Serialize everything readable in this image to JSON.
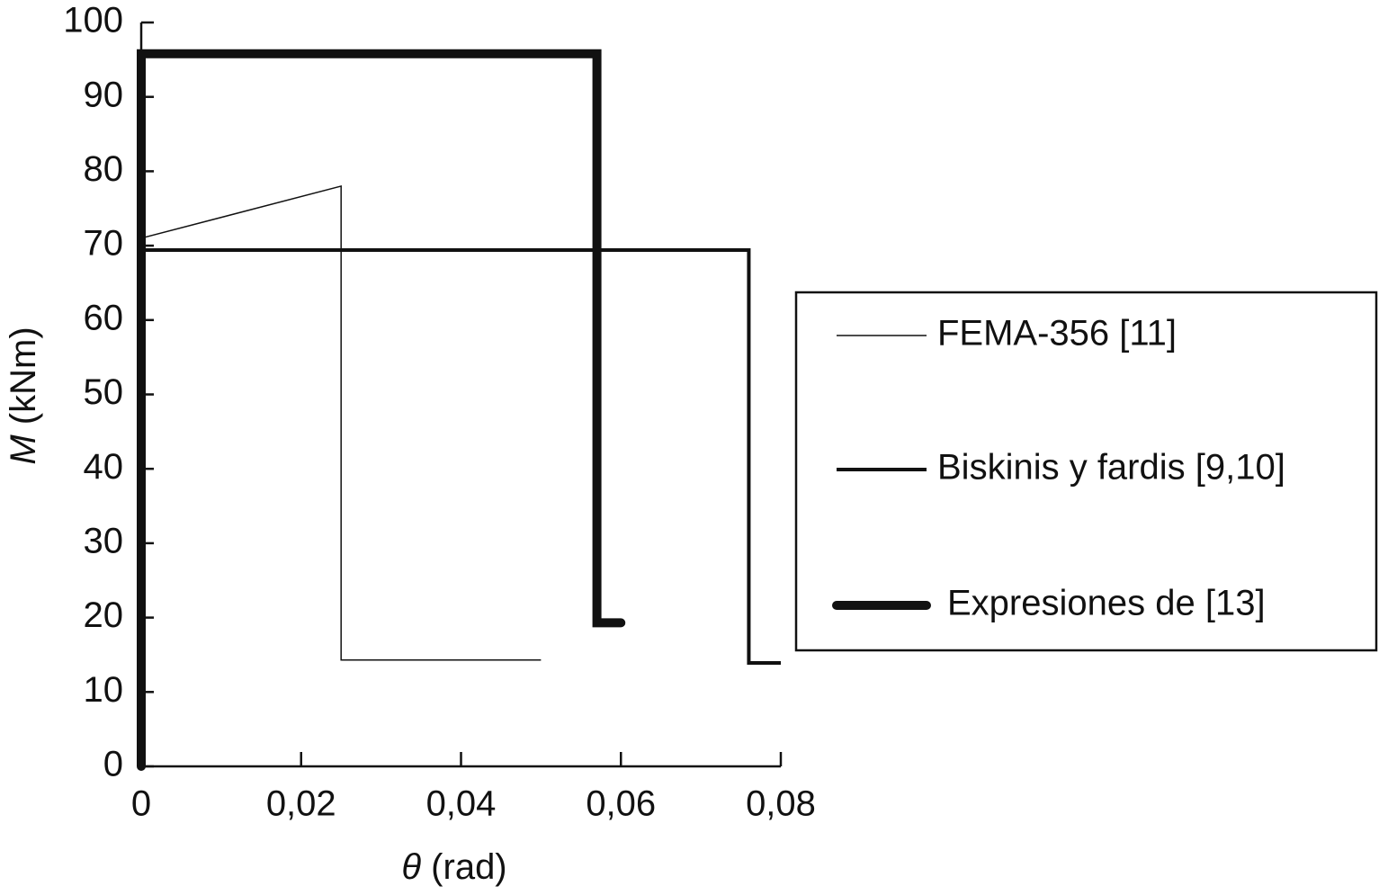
{
  "chart_data": {
    "type": "line",
    "xlabel": "θ (rad)",
    "ylabel": "M (kNm)",
    "xlim": [
      0,
      0.08
    ],
    "ylim": [
      0,
      100
    ],
    "xticks": [
      0,
      {
        "value": 0.02,
        "label": "0,02"
      },
      {
        "value": 0.04,
        "label": "0,04"
      },
      {
        "value": 0.06,
        "label": "0,06"
      },
      {
        "value": 0.08,
        "label": "0,08"
      }
    ],
    "yticks": [
      0,
      10,
      20,
      30,
      40,
      50,
      60,
      70,
      80,
      90,
      100
    ],
    "legend": "right",
    "series": [
      {
        "name": "FEMA-356 [11]",
        "color": "#111111",
        "width": 1.5,
        "x": [
          0,
          0,
          0.025,
          0.025,
          0.05
        ],
        "values": [
          0,
          71,
          78,
          14.3,
          14.3
        ]
      },
      {
        "name": "Biskinis y fardis [9,10]",
        "color": "#111111",
        "width": 4,
        "x": [
          0,
          0,
          0.076,
          0.076,
          0.08
        ],
        "values": [
          0,
          69.4,
          69.4,
          13.9,
          13.9
        ]
      },
      {
        "name": "Expresiones de [13]",
        "color": "#111111",
        "width": 10,
        "x": [
          0,
          0,
          0.057,
          0.057,
          0.06
        ],
        "values": [
          0,
          95.8,
          95.8,
          19.3,
          19.3
        ]
      }
    ]
  }
}
